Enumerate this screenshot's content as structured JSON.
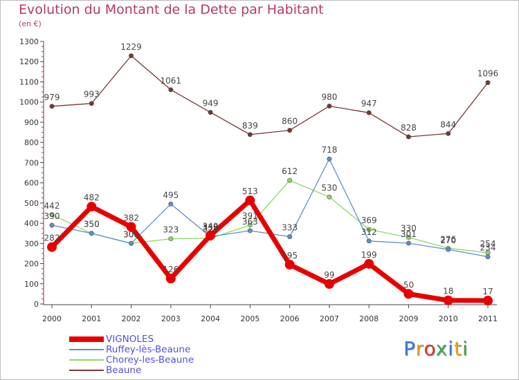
{
  "title": "Evolution du Montant de la Dette par Habitant",
  "subtitle": "(en €)",
  "logo": [
    "P",
    "r",
    "o",
    "x",
    "i",
    "t",
    "i"
  ],
  "logo_colors": [
    "#3a7bd5",
    "#e8a020",
    "#d83a2a",
    "#3aa84a",
    "#3a7bd5",
    "#e8a020",
    "#3aa84a"
  ],
  "chart_data": {
    "type": "line",
    "x": [
      "2000",
      "2001",
      "2002",
      "2003",
      "2004",
      "2005",
      "2006",
      "2007",
      "2008",
      "2009",
      "2010",
      "2011"
    ],
    "ylim": [
      0,
      1300
    ],
    "yticks": [
      0,
      100,
      200,
      300,
      400,
      500,
      600,
      700,
      800,
      900,
      1000,
      1100,
      1200,
      1300
    ],
    "grid": false,
    "legend_position": "bottom-left",
    "series": [
      {
        "name": "VIGNOLES",
        "color": "#e80000",
        "values": [
          282,
          482,
          382,
          126,
          340,
          513,
          195,
          99,
          199,
          50,
          18,
          17
        ]
      },
      {
        "name": "Ruffey-lès-Beaune",
        "color": "#5b8fcb",
        "values": [
          390,
          350,
          300,
          495,
          333,
          363,
          333,
          718,
          312,
          301,
          270,
          234
        ]
      },
      {
        "name": "Chorey-les-Beaune",
        "color": "#8ed660",
        "values": [
          442,
          350,
          300,
          323,
          325,
          391,
          612,
          530,
          369,
          330,
          276,
          254
        ]
      },
      {
        "name": "Beaune",
        "color": "#7a3535",
        "values": [
          979,
          993,
          1229,
          1061,
          949,
          839,
          860,
          980,
          947,
          828,
          844,
          1096
        ]
      }
    ]
  }
}
